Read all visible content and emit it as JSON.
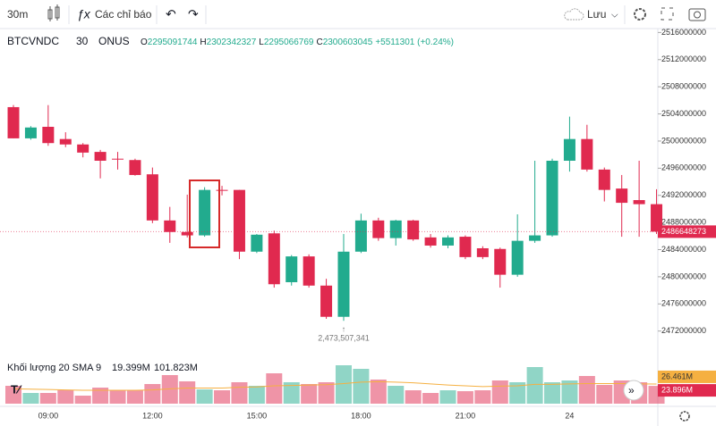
{
  "toolbar": {
    "interval": "30m",
    "indicators": "Các chỉ báo",
    "save": "Lưu"
  },
  "chart_data": {
    "type": "candlestick",
    "symbol": "BTCVNDC",
    "interval": "30",
    "exchange": "ONUS",
    "ohlc_legend": {
      "o_label": "O",
      "o": "2295091744",
      "h_label": "H",
      "h": "2302342327",
      "l_label": "L",
      "l": "2295066769",
      "c_label": "C",
      "c": "2300603045",
      "change": "+5511301 (+0.24%)"
    },
    "categories": [
      null,
      null,
      "09:00",
      null,
      null,
      null,
      null,
      null,
      "12:00",
      null,
      null,
      null,
      null,
      null,
      "15:00",
      null,
      null,
      null,
      null,
      null,
      "18:00",
      null,
      null,
      null,
      null,
      null,
      "21:00",
      null,
      null,
      null,
      null,
      null,
      "24",
      null,
      null,
      null,
      null,
      null
    ],
    "open": [
      2505000000,
      2500400000,
      2502100000,
      2500300000,
      2499500000,
      2498400000,
      2497400000,
      2497200000,
      2495100000,
      2488300000,
      2486600000,
      2486100000,
      2492800000,
      2492800000,
      2483700000,
      2486400000,
      2479200000,
      2483000000,
      2478700000,
      2474100000,
      2483700000,
      2488300000,
      2485700000,
      2488300000,
      2485800000,
      2484600000,
      2485900000,
      2484200000,
      2484100000,
      2480300000,
      2485300000,
      2486100000,
      2497100000,
      2500300000,
      2495800000,
      2493000000,
      2491300000,
      2490700000
    ],
    "high": [
      2505300000,
      2502200000,
      2505300000,
      2501300000,
      2499700000,
      2498700000,
      2498400000,
      2497400000,
      2496100000,
      2490300000,
      2492100000,
      2493200000,
      2493400000,
      2492800000,
      2486300000,
      2486800000,
      2483200000,
      2483300000,
      2479700000,
      2486300000,
      2489300000,
      2488700000,
      2488400000,
      2488400000,
      2486300000,
      2486100000,
      2486100000,
      2484500000,
      2484300000,
      2489200000,
      2497100000,
      2497400000,
      2503600000,
      2502400000,
      2496100000,
      2495000000,
      2497100000,
      2492900000
    ],
    "low": [
      2500400000,
      2500200000,
      2499300000,
      2499100000,
      2497600000,
      2494500000,
      2495800000,
      2494900000,
      2487900000,
      2485000000,
      2485800000,
      2485900000,
      2492000000,
      2482600000,
      2483500000,
      2478400000,
      2478700000,
      2478400000,
      2473800000,
      2473507341,
      2483500000,
      2485300000,
      2484600000,
      2485300000,
      2484300000,
      2484200000,
      2482600000,
      2482600000,
      2478400000,
      2480000000,
      2485000000,
      2485900000,
      2495500000,
      2495500000,
      2491100000,
      2485900000,
      2485900000,
      2486300000
    ],
    "close": [
      2500400000,
      2502000000,
      2499700000,
      2499500000,
      2498300000,
      2497100000,
      2497300000,
      2495000000,
      2488300000,
      2486600000,
      2486100000,
      2492800000,
      2492700000,
      2483700000,
      2486200000,
      2478900000,
      2483000000,
      2478700000,
      2474100000,
      2483700000,
      2488300000,
      2485700000,
      2488300000,
      2485500000,
      2484600000,
      2485800000,
      2482900000,
      2482900000,
      2480300000,
      2485300000,
      2486100000,
      2497100000,
      2500300000,
      2495800000,
      2492800000,
      2490900000,
      2490700000,
      2486648273
    ],
    "up_color": "#22ab8e",
    "down_color": "#e0294f",
    "ylim": [
      2468800000,
      2516840000
    ],
    "yticks": [
      2472000000,
      2476000000,
      2480000000,
      2484000000,
      2488000000,
      2492000000,
      2496000000,
      2500000000,
      2504000000,
      2508000000,
      2512000000,
      2516000000
    ],
    "last_price_label": "2486648273",
    "low_annotation": "2,473,507,341",
    "volume": {
      "legend": "Khối lượng 20 SMA 9",
      "legend_volume": "19.399M",
      "legend_sma": "101.823M",
      "values": [
        24000000,
        14400000,
        14400000,
        18000000,
        10800000,
        21600000,
        18000000,
        18000000,
        26400000,
        38400000,
        30000000,
        19200000,
        18000000,
        28800000,
        24000000,
        40800000,
        28800000,
        26400000,
        28800000,
        51600000,
        46800000,
        32400000,
        24000000,
        18000000,
        14400000,
        18000000,
        16800000,
        18000000,
        31200000,
        28800000,
        49200000,
        28800000,
        31200000,
        37200000,
        25200000,
        31200000,
        28800000,
        23896000
      ],
      "last_label": "23.896M",
      "sma": [
        20000000,
        19500000,
        19000000,
        18500000,
        18000000,
        18000000,
        18000000,
        18000000,
        18500000,
        20000000,
        21000000,
        21000000,
        21000000,
        22000000,
        22500000,
        24000000,
        24500000,
        25000000,
        25500000,
        27000000,
        29000000,
        29500000,
        29000000,
        28000000,
        26500000,
        25000000,
        24000000,
        23000000,
        23500000,
        24000000,
        26000000,
        26000000,
        26500000,
        27000000,
        27000000,
        27000000,
        26500000,
        26461000
      ],
      "sma_color": "#f5b041",
      "sma_last_label": "26.461M",
      "ylim": [
        0,
        60000000
      ]
    }
  }
}
